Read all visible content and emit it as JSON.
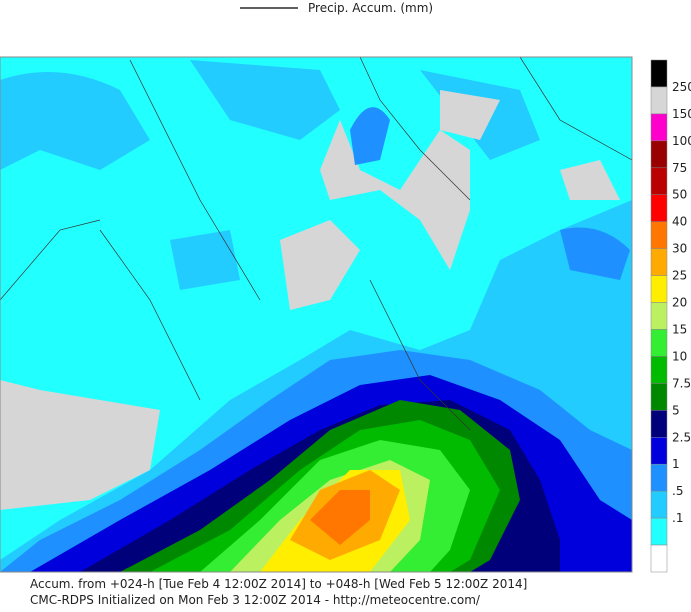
{
  "legend": {
    "label": "Precip. Accum. (mm)"
  },
  "colorbar": {
    "labels": [
      "250",
      "150",
      "100",
      "75",
      "50",
      "40",
      "30",
      "25",
      "20",
      "15",
      "10",
      "7.5",
      "5",
      "2.5",
      "1",
      ".5",
      ".1"
    ],
    "colors": [
      "#000000",
      "#d6d6d6",
      "#ff00cc",
      "#990000",
      "#bb0000",
      "#ff0000",
      "#ff7700",
      "#ffaa00",
      "#ffee00",
      "#bbf060",
      "#33ee33",
      "#00bb00",
      "#008800",
      "#00007a",
      "#0000dd",
      "#1e90ff",
      "#22ccff",
      "#22ffff",
      "#ffffff"
    ]
  },
  "footer": {
    "line1": "Accum. from +024-h [Tue Feb 4 12:00Z 2014] to +048-h [Wed Feb 5 12:00Z 2014]",
    "line2": "CMC-RDPS Initialized on Mon Feb 3 12:00Z 2014 - http://meteocentre.com/"
  }
}
